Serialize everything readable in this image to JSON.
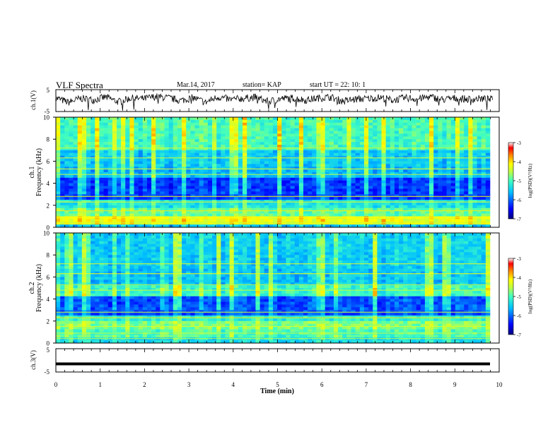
{
  "header": {
    "title": "VLF Spectra",
    "date": "Mar.14, 2017",
    "station": "station= KAP",
    "start": "start  UT =   22: 10: 1"
  },
  "chart_data": [
    {
      "type": "line",
      "panel": "ch1-waveform",
      "ylabel": "ch.1(V)",
      "ylim": [
        -5,
        5
      ],
      "yticks": [
        "5",
        "-5"
      ],
      "xlim": [
        0,
        10
      ],
      "x_end": 9.85,
      "description_of_trace": "noisy black waveform around 0 V",
      "series": [
        {
          "values": [
            1.2,
            -0.8,
            1.0,
            0.3,
            1.6,
            -0.6,
            1.1,
            0.8,
            1.8,
            1.2,
            0.0,
            1.3,
            -0.8,
            1.7,
            0.4,
            1.0,
            1.5,
            -0.5,
            0.8,
            1.2,
            0.2,
            1.1,
            1.6,
            -0.3,
            0.6,
            0.9,
            1.4,
            0.2,
            1.2,
            0.8,
            1.7,
            0.4,
            1.1,
            0.6,
            0.9,
            0.4
          ]
        }
      ]
    },
    {
      "type": "heatmap",
      "panel": "ch1-spectrogram",
      "ylabel": "Frequency (kHz)",
      "channel_label": "ch.1",
      "ylim": [
        0,
        10
      ],
      "yticks": [
        "0",
        "2",
        "4",
        "6",
        "8",
        "10"
      ],
      "xlim": [
        0,
        10
      ],
      "colorbar": {
        "label": "log(PSD)(V²/Hz)",
        "range": [
          -7,
          -3
        ],
        "ticks": [
          "-3",
          "-4",
          "-5",
          "-6",
          "-7"
        ]
      }
    },
    {
      "type": "heatmap",
      "panel": "ch2-spectrogram",
      "ylabel": "Frequency (kHz)",
      "channel_label": "ch.2",
      "ylim": [
        0,
        10
      ],
      "yticks": [
        "0",
        "2",
        "4",
        "6",
        "8",
        "10"
      ],
      "xlim": [
        0,
        10
      ],
      "colorbar": {
        "label": "log(PSD)(V²/Hz)",
        "range": [
          -7,
          -3
        ],
        "ticks": [
          "-3",
          "-4",
          "-5",
          "-6",
          "-7"
        ]
      }
    },
    {
      "type": "line",
      "panel": "ch3-waveform",
      "ylabel": "ch.3(V)",
      "ylim": [
        -5,
        5
      ],
      "yticks": [
        "5",
        "-5"
      ],
      "xlim": [
        0,
        10
      ],
      "series": [
        {
          "values": [
            -1.5,
            -1.5
          ]
        }
      ],
      "xlabel": "Time (min)",
      "xticks": [
        "0",
        "1",
        "2",
        "3",
        "4",
        "5",
        "6",
        "7",
        "8",
        "9",
        "10"
      ]
    }
  ],
  "colors": {
    "axis": "#000000",
    "colormap": [
      "#00007f",
      "#0000ff",
      "#007fff",
      "#00ffff",
      "#7fff7f",
      "#ffff00",
      "#ff7f00",
      "#ff0000",
      "#7f0000"
    ]
  }
}
